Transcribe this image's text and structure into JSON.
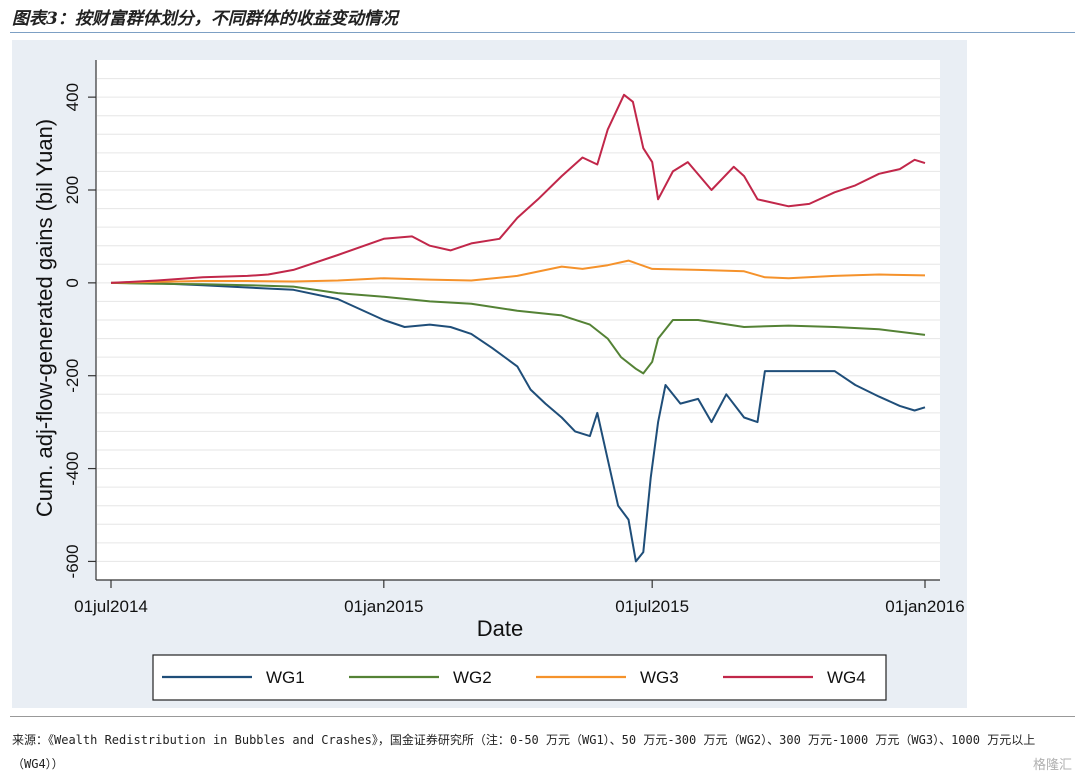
{
  "header": {
    "title": "图表3：按财富群体划分，不同群体的收益变动情况"
  },
  "footer": {
    "source": "来源：《Wealth Redistribution in Bubbles and Crashes》，国金证券研究所（注：0-50 万元（WG1）、50 万元-300 万元（WG2）、300 万元-1000 万元（WG3）、1000 万元以上（WG4））",
    "watermark": "格隆汇"
  },
  "chart_data": {
    "type": "line",
    "xlabel": "Date",
    "ylabel": "Cum. adj-flow-generated gains (bil Yuan)",
    "x_range": [
      "2014-07-01",
      "2016-01-01"
    ],
    "x_ticks": [
      {
        "date": "2014-07-01",
        "label": "01jul2014"
      },
      {
        "date": "2015-01-01",
        "label": "01jan2015"
      },
      {
        "date": "2015-07-01",
        "label": "01jul2015"
      },
      {
        "date": "2016-01-01",
        "label": "01jan2016"
      }
    ],
    "ylim": [
      -640,
      480
    ],
    "y_ticks": [
      400,
      200,
      0,
      -200,
      -400,
      -600
    ],
    "grid": true,
    "legend_position": "bottom",
    "series": [
      {
        "name": "WG1",
        "color": "#1f4e79",
        "points": [
          [
            "2014-07-01",
            0
          ],
          [
            "2014-08-01",
            -1
          ],
          [
            "2014-09-01",
            -5
          ],
          [
            "2014-10-01",
            -10
          ],
          [
            "2014-11-01",
            -15
          ],
          [
            "2014-12-01",
            -35
          ],
          [
            "2015-01-01",
            -80
          ],
          [
            "2015-01-15",
            -95
          ],
          [
            "2015-02-01",
            -90
          ],
          [
            "2015-02-15",
            -95
          ],
          [
            "2015-03-01",
            -110
          ],
          [
            "2015-03-15",
            -140
          ],
          [
            "2015-04-01",
            -180
          ],
          [
            "2015-04-10",
            -230
          ],
          [
            "2015-04-20",
            -260
          ],
          [
            "2015-05-01",
            -290
          ],
          [
            "2015-05-10",
            -320
          ],
          [
            "2015-05-20",
            -330
          ],
          [
            "2015-05-25",
            -280
          ],
          [
            "2015-06-01",
            -380
          ],
          [
            "2015-06-08",
            -480
          ],
          [
            "2015-06-15",
            -510
          ],
          [
            "2015-06-20",
            -600
          ],
          [
            "2015-06-25",
            -580
          ],
          [
            "2015-06-30",
            -420
          ],
          [
            "2015-07-05",
            -300
          ],
          [
            "2015-07-10",
            -220
          ],
          [
            "2015-07-20",
            -260
          ],
          [
            "2015-08-01",
            -250
          ],
          [
            "2015-08-10",
            -300
          ],
          [
            "2015-08-20",
            -240
          ],
          [
            "2015-09-01",
            -290
          ],
          [
            "2015-09-10",
            -300
          ],
          [
            "2015-09-15",
            -190
          ],
          [
            "2015-10-01",
            -190
          ],
          [
            "2015-11-01",
            -190
          ],
          [
            "2015-11-15",
            -220
          ],
          [
            "2015-12-01",
            -245
          ],
          [
            "2015-12-15",
            -265
          ],
          [
            "2015-12-25",
            -275
          ],
          [
            "2016-01-01",
            -268
          ]
        ]
      },
      {
        "name": "WG2",
        "color": "#548235",
        "points": [
          [
            "2014-07-01",
            0
          ],
          [
            "2014-08-01",
            -2
          ],
          [
            "2014-09-01",
            -3
          ],
          [
            "2014-10-01",
            -5
          ],
          [
            "2014-11-01",
            -8
          ],
          [
            "2014-12-01",
            -22
          ],
          [
            "2015-01-01",
            -30
          ],
          [
            "2015-02-01",
            -40
          ],
          [
            "2015-03-01",
            -45
          ],
          [
            "2015-04-01",
            -60
          ],
          [
            "2015-05-01",
            -70
          ],
          [
            "2015-05-20",
            -90
          ],
          [
            "2015-06-01",
            -120
          ],
          [
            "2015-06-10",
            -160
          ],
          [
            "2015-06-20",
            -185
          ],
          [
            "2015-06-25",
            -195
          ],
          [
            "2015-07-01",
            -170
          ],
          [
            "2015-07-05",
            -120
          ],
          [
            "2015-07-15",
            -80
          ],
          [
            "2015-08-01",
            -80
          ],
          [
            "2015-09-01",
            -95
          ],
          [
            "2015-10-01",
            -92
          ],
          [
            "2015-11-01",
            -95
          ],
          [
            "2015-12-01",
            -100
          ],
          [
            "2016-01-01",
            -112
          ]
        ]
      },
      {
        "name": "WG3",
        "color": "#f5922b",
        "points": [
          [
            "2014-07-01",
            0
          ],
          [
            "2014-08-01",
            2
          ],
          [
            "2014-09-01",
            4
          ],
          [
            "2014-10-01",
            4
          ],
          [
            "2014-11-01",
            3
          ],
          [
            "2014-12-01",
            5
          ],
          [
            "2015-01-01",
            10
          ],
          [
            "2015-02-01",
            7
          ],
          [
            "2015-03-01",
            5
          ],
          [
            "2015-04-01",
            15
          ],
          [
            "2015-05-01",
            35
          ],
          [
            "2015-05-15",
            30
          ],
          [
            "2015-06-01",
            38
          ],
          [
            "2015-06-15",
            48
          ],
          [
            "2015-07-01",
            30
          ],
          [
            "2015-08-01",
            28
          ],
          [
            "2015-09-01",
            25
          ],
          [
            "2015-09-15",
            12
          ],
          [
            "2015-10-01",
            10
          ],
          [
            "2015-11-01",
            15
          ],
          [
            "2015-12-01",
            18
          ],
          [
            "2016-01-01",
            16
          ]
        ]
      },
      {
        "name": "WG4",
        "color": "#c1274a",
        "points": [
          [
            "2014-07-01",
            0
          ],
          [
            "2014-08-01",
            5
          ],
          [
            "2014-09-01",
            12
          ],
          [
            "2014-10-01",
            15
          ],
          [
            "2014-10-15",
            18
          ],
          [
            "2014-11-01",
            28
          ],
          [
            "2014-12-01",
            60
          ],
          [
            "2015-01-01",
            95
          ],
          [
            "2015-01-20",
            100
          ],
          [
            "2015-02-01",
            80
          ],
          [
            "2015-02-15",
            70
          ],
          [
            "2015-03-01",
            85
          ],
          [
            "2015-03-20",
            95
          ],
          [
            "2015-04-01",
            140
          ],
          [
            "2015-04-15",
            180
          ],
          [
            "2015-05-01",
            230
          ],
          [
            "2015-05-15",
            270
          ],
          [
            "2015-05-25",
            255
          ],
          [
            "2015-06-01",
            330
          ],
          [
            "2015-06-12",
            405
          ],
          [
            "2015-06-18",
            390
          ],
          [
            "2015-06-25",
            290
          ],
          [
            "2015-07-01",
            260
          ],
          [
            "2015-07-05",
            180
          ],
          [
            "2015-07-15",
            240
          ],
          [
            "2015-07-25",
            260
          ],
          [
            "2015-08-10",
            200
          ],
          [
            "2015-08-25",
            250
          ],
          [
            "2015-09-01",
            230
          ],
          [
            "2015-09-10",
            180
          ],
          [
            "2015-10-01",
            165
          ],
          [
            "2015-10-15",
            170
          ],
          [
            "2015-11-01",
            195
          ],
          [
            "2015-11-15",
            210
          ],
          [
            "2015-12-01",
            235
          ],
          [
            "2015-12-15",
            245
          ],
          [
            "2015-12-25",
            265
          ],
          [
            "2016-01-01",
            258
          ]
        ]
      }
    ]
  }
}
